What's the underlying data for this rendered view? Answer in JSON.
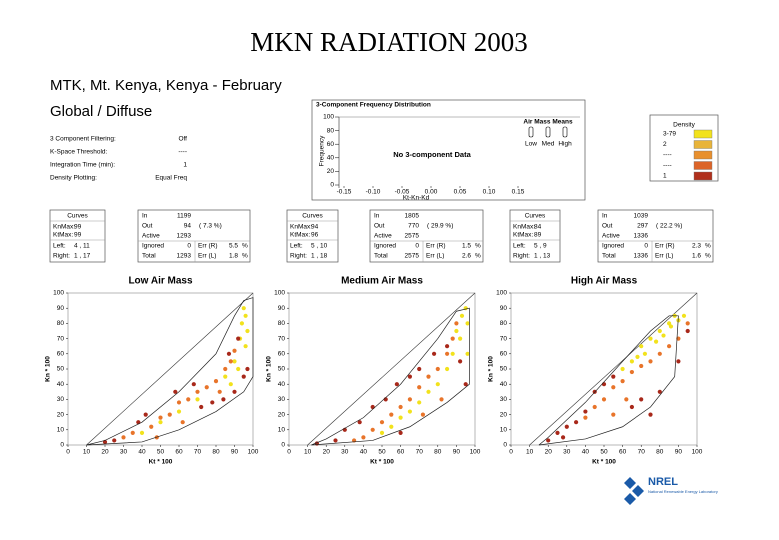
{
  "header": {
    "title": "MKN RADIATION 2003",
    "site": "MTK, Mt. Kenya, Kenya - February",
    "subtitle": "Global / Diffuse"
  },
  "settings": [
    {
      "label": "3 Component Filtering:",
      "value": "Off"
    },
    {
      "label": "K-Space Threshold:",
      "value": "----"
    },
    {
      "label": "Integration Time (min):",
      "value": "1"
    },
    {
      "label": "Density Plotting:",
      "value": "Equal Freq"
    }
  ],
  "density": {
    "title": "Density",
    "rows": [
      {
        "label": "3-79",
        "color": "#f2e21c"
      },
      {
        "label": "2",
        "color": "#e8b43a"
      },
      {
        "label": "----",
        "color": "#e8902e"
      },
      {
        "label": "----",
        "color": "#dc6428"
      },
      {
        "label": "1",
        "color": "#b0301c"
      }
    ]
  },
  "panels": [
    {
      "curves": {
        "title": "Curves",
        "rows": [
          {
            "label": "KnMax:",
            "value": "99"
          },
          {
            "label": "KtMax:",
            "value": "99"
          },
          {
            "label": "Left:",
            "value": "4 , 11"
          },
          {
            "label": "Right:",
            "value": "1 , 17"
          }
        ]
      },
      "stats": {
        "rows": [
          {
            "label": "In",
            "value": "1199"
          },
          {
            "label": "Out",
            "value": "94",
            "note": "( 7.3 %)"
          },
          {
            "label": "Active",
            "value": "1293"
          },
          {
            "label": "Ignored",
            "value": "0"
          },
          {
            "label": "Total",
            "value": "1293"
          }
        ],
        "err": [
          {
            "label": "Err (R)",
            "value": "5.5",
            "unit": "%"
          },
          {
            "label": "Err (L)",
            "value": "1.8",
            "unit": "%"
          }
        ]
      }
    },
    {
      "curves": {
        "title": "Curves",
        "rows": [
          {
            "label": "KnMax:",
            "value": "94"
          },
          {
            "label": "KtMax:",
            "value": "96"
          },
          {
            "label": "Left:",
            "value": "5 , 10"
          },
          {
            "label": "Right:",
            "value": "1 , 18"
          }
        ]
      },
      "stats": {
        "rows": [
          {
            "label": "In",
            "value": "1805"
          },
          {
            "label": "Out",
            "value": "770",
            "note": "( 29.9 %)"
          },
          {
            "label": "Active",
            "value": "2575"
          },
          {
            "label": "Ignored",
            "value": "0"
          },
          {
            "label": "Total",
            "value": "2575"
          }
        ],
        "err": [
          {
            "label": "Err (R)",
            "value": "1.5",
            "unit": "%"
          },
          {
            "label": "Err (L)",
            "value": "2.6",
            "unit": "%"
          }
        ]
      }
    },
    {
      "curves": {
        "title": "Curves",
        "rows": [
          {
            "label": "KnMax:",
            "value": "84"
          },
          {
            "label": "KtMax:",
            "value": "89"
          },
          {
            "label": "Left:",
            "value": "5 , 9"
          },
          {
            "label": "Right:",
            "value": "1 , 13"
          }
        ]
      },
      "stats": {
        "rows": [
          {
            "label": "In",
            "value": "1039"
          },
          {
            "label": "Out",
            "value": "297",
            "note": "( 22.2 %)"
          },
          {
            "label": "Active",
            "value": "1336"
          },
          {
            "label": "Ignored",
            "value": "0"
          },
          {
            "label": "Total",
            "value": "1336"
          }
        ],
        "err": [
          {
            "label": "Err (R)",
            "value": "2.3",
            "unit": "%"
          },
          {
            "label": "Err (L)",
            "value": "1.6",
            "unit": "%"
          }
        ]
      }
    }
  ],
  "logo": {
    "name": "NREL",
    "text": "National Renewable Energy Laboratory"
  },
  "chart_data": [
    {
      "type": "frequency",
      "title": "3-Component Frequency Distribution",
      "x_label": "Kt-Kn-Kd",
      "y_label": "Frequency",
      "annotation": "No 3-component Data",
      "legend_title": "Air Mass Means",
      "legend": [
        "Low",
        "Med",
        "High"
      ],
      "xlim": [
        -0.15,
        0.15
      ],
      "xticks": [
        {
          "value": -0.15,
          "label": "-0.15"
        },
        {
          "value": -0.1,
          "label": "-0.10"
        },
        {
          "value": -0.05,
          "label": "-0.05"
        },
        {
          "value": 0,
          "label": "0.00"
        },
        {
          "value": 0.05,
          "label": "0.05"
        },
        {
          "value": 0.1,
          "label": "0.10"
        },
        {
          "value": 0.15,
          "label": "0.15"
        }
      ],
      "ylim": [
        0,
        100
      ],
      "yticks": [
        0,
        20,
        40,
        60,
        80,
        100
      ]
    },
    {
      "type": "scatter",
      "title": "Low Air Mass",
      "x_label": "Kt * 100",
      "y_label": "Kn * 100",
      "xlim": [
        0,
        100
      ],
      "xticks": [
        0,
        10,
        20,
        30,
        40,
        50,
        60,
        70,
        80,
        90,
        100
      ],
      "ylim": [
        0,
        100
      ],
      "yticks": [
        0,
        10,
        20,
        30,
        40,
        50,
        60,
        70,
        80,
        90,
        100
      ],
      "series": [
        {
          "color": "#f2e21c",
          "x": [
            95,
            96,
            94,
            97,
            93,
            96,
            90,
            92,
            85,
            88,
            70,
            60,
            50,
            40
          ],
          "values": [
            90,
            85,
            80,
            75,
            70,
            65,
            55,
            50,
            45,
            40,
            30,
            22,
            15,
            8
          ]
        },
        {
          "color": "#e8742a",
          "x": [
            30,
            35,
            45,
            50,
            55,
            60,
            65,
            70,
            75,
            80,
            85,
            88,
            90,
            82,
            62,
            48
          ],
          "values": [
            5,
            8,
            12,
            18,
            20,
            28,
            30,
            35,
            38,
            42,
            50,
            55,
            62,
            35,
            15,
            5
          ]
        },
        {
          "color": "#a8281a",
          "x": [
            20,
            25,
            38,
            42,
            58,
            68,
            72,
            78,
            84,
            90,
            95,
            97,
            92,
            87
          ],
          "values": [
            2,
            3,
            15,
            20,
            35,
            40,
            25,
            28,
            30,
            35,
            45,
            50,
            70,
            60
          ]
        }
      ]
    },
    {
      "type": "scatter",
      "title": "Medium Air Mass",
      "x_label": "Kt * 100",
      "y_label": "Kn * 100",
      "xlim": [
        0,
        100
      ],
      "xticks": [
        0,
        10,
        20,
        30,
        40,
        50,
        60,
        70,
        80,
        90,
        100
      ],
      "ylim": [
        0,
        100
      ],
      "yticks": [
        0,
        10,
        20,
        30,
        40,
        50,
        60,
        70,
        80,
        90,
        100
      ],
      "series": [
        {
          "color": "#f2e21c",
          "x": [
            95,
            93,
            96,
            90,
            92,
            88,
            85,
            80,
            75,
            70,
            65,
            60,
            55,
            50,
            96
          ],
          "values": [
            90,
            85,
            80,
            75,
            70,
            60,
            50,
            40,
            35,
            28,
            22,
            18,
            12,
            8,
            60
          ]
        },
        {
          "color": "#e8742a",
          "x": [
            45,
            50,
            55,
            60,
            65,
            70,
            75,
            80,
            85,
            88,
            90,
            82,
            72,
            40,
            35
          ],
          "values": [
            10,
            15,
            20,
            25,
            30,
            38,
            45,
            50,
            60,
            70,
            80,
            30,
            20,
            5,
            3
          ]
        },
        {
          "color": "#a8281a",
          "x": [
            15,
            25,
            38,
            45,
            52,
            58,
            65,
            70,
            78,
            85,
            92,
            95,
            60,
            30
          ],
          "values": [
            1,
            3,
            15,
            25,
            30,
            40,
            45,
            50,
            60,
            65,
            55,
            40,
            8,
            10
          ]
        }
      ]
    },
    {
      "type": "scatter",
      "title": "High Air Mass",
      "x_label": "Kt * 100",
      "y_label": "Kn * 100",
      "xlim": [
        0,
        100
      ],
      "xticks": [
        0,
        10,
        20,
        30,
        40,
        50,
        60,
        70,
        80,
        90,
        100
      ],
      "ylim": [
        0,
        100
      ],
      "yticks": [
        0,
        10,
        20,
        30,
        40,
        50,
        60,
        70,
        80,
        90,
        100
      ],
      "series": [
        {
          "color": "#f2e21c",
          "x": [
            70,
            75,
            80,
            85,
            88,
            90,
            72,
            78,
            82,
            65,
            93,
            60,
            86,
            68
          ],
          "values": [
            65,
            70,
            75,
            80,
            85,
            82,
            60,
            68,
            72,
            55,
            85,
            50,
            78,
            58
          ]
        },
        {
          "color": "#e8742a",
          "x": [
            45,
            50,
            55,
            60,
            65,
            70,
            75,
            80,
            85,
            90,
            95,
            55,
            62,
            40
          ],
          "values": [
            25,
            30,
            38,
            42,
            48,
            52,
            55,
            60,
            65,
            70,
            80,
            20,
            30,
            18
          ]
        },
        {
          "color": "#a8281a",
          "x": [
            20,
            25,
            30,
            35,
            40,
            45,
            50,
            55,
            65,
            70,
            75,
            80,
            90,
            95,
            28
          ],
          "values": [
            3,
            8,
            12,
            15,
            22,
            35,
            40,
            45,
            25,
            30,
            20,
            35,
            55,
            75,
            5
          ]
        }
      ]
    }
  ]
}
